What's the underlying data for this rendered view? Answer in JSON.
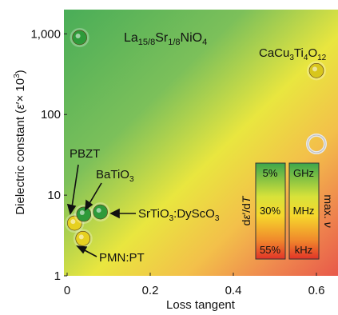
{
  "chart_data": {
    "type": "scatter",
    "xlabel": "Loss tangent",
    "ylabel_parts": {
      "main": "Dielectric constant (",
      "eps": "ε",
      "times": "′× 10",
      "exp": "3",
      "close": ")"
    },
    "xlim": [
      0,
      0.63
    ],
    "ylim": [
      1,
      2000
    ],
    "y_scale": "log",
    "x_ticks": [
      {
        "value": 0,
        "label": "0"
      },
      {
        "value": 0.2,
        "label": "0.2"
      },
      {
        "value": 0.4,
        "label": "0.4"
      },
      {
        "value": 0.6,
        "label": "0.6"
      }
    ],
    "y_ticks": [
      {
        "value": 1,
        "label": "1"
      },
      {
        "value": 10,
        "label": "10"
      },
      {
        "value": 100,
        "label": "100"
      },
      {
        "value": 1000,
        "label": "1,000"
      }
    ],
    "points": [
      {
        "name": "La15/8Sr1/8NiO4",
        "x": 0.03,
        "y": 900,
        "color": "#2e9a3a"
      },
      {
        "name": "CaCu3Ti4O12",
        "x": 0.6,
        "y": 350,
        "color": "#d8c61c"
      },
      {
        "name": "PBZT",
        "x": 0.018,
        "y": 4.5,
        "color": "#e6d020"
      },
      {
        "name": "BaTiO3",
        "x": 0.04,
        "y": 5.8,
        "color": "#2e9a3a"
      },
      {
        "name": "SrTiO3:DySCO3",
        "x": 0.08,
        "y": 6.2,
        "color": "#2e9a3a"
      },
      {
        "name": "PMN:PT",
        "x": 0.038,
        "y": 2.9,
        "color": "#e6d020"
      }
    ],
    "annotations": {
      "la": {
        "main": "La",
        "sub1": "15/8",
        "mid": "Sr",
        "sub2": "1/8",
        "rest": "NiO",
        "sub3": "4"
      },
      "ca": {
        "p1": "CaCu",
        "s1": "3",
        "p2": "Ti",
        "s2": "4",
        "p3": "O",
        "s3": "12"
      },
      "pbzt": "PBZT",
      "bto": {
        "p1": "BaTiO",
        "s1": "3"
      },
      "sto": {
        "p1": "SrTiO",
        "s1": "3",
        "p2": ":DyScO",
        "s2": "3"
      },
      "pmn": "PMN:PT"
    },
    "legend": {
      "loss_label": {
        "p1": "d",
        "p2": "ε",
        "p3": "′/d",
        "p4": "T"
      },
      "loss_values": [
        "5%",
        "30%",
        "55%"
      ],
      "freq_values": [
        "GHz",
        "MHz",
        "kHz"
      ],
      "freq_label": {
        "p1": "max. ",
        "p2": "ν"
      }
    },
    "colors": {
      "green": "#4db35a",
      "yellow": "#f2ec3a",
      "orange": "#f29a45",
      "red": "#e8433a"
    }
  }
}
